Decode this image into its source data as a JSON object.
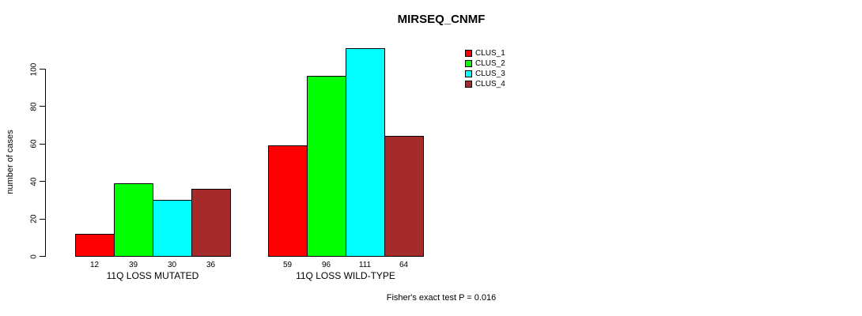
{
  "figure": {
    "background": "#FFFFFF",
    "text_color": "#000000"
  },
  "chart_data": {
    "type": "bar",
    "title": "MIRSEQ_CNMF",
    "ylabel": "number of cases",
    "xlabel": "",
    "ylim": [
      0,
      115
    ],
    "y_ticks": [
      0,
      20,
      40,
      60,
      80,
      100
    ],
    "grid": false,
    "legend_position": "top-right-outside",
    "bar_edge_color": "#000000",
    "categories": [
      "11Q LOSS MUTATED",
      "11Q LOSS WILD-TYPE"
    ],
    "series": [
      {
        "name": "CLUS_1",
        "color": "#FF0000",
        "values": [
          12,
          59
        ]
      },
      {
        "name": "CLUS_2",
        "color": "#00FF00",
        "values": [
          39,
          96
        ]
      },
      {
        "name": "CLUS_3",
        "color": "#00FFFF",
        "values": [
          30,
          111
        ]
      },
      {
        "name": "CLUS_4",
        "color": "#A52A2A",
        "values": [
          36,
          64
        ]
      }
    ],
    "bar_value_labels": [
      [
        "12",
        "39",
        "30",
        "36"
      ],
      [
        "59",
        "96",
        "111",
        "64"
      ]
    ],
    "annotation": "Fisher's exact test P = 0.016"
  }
}
